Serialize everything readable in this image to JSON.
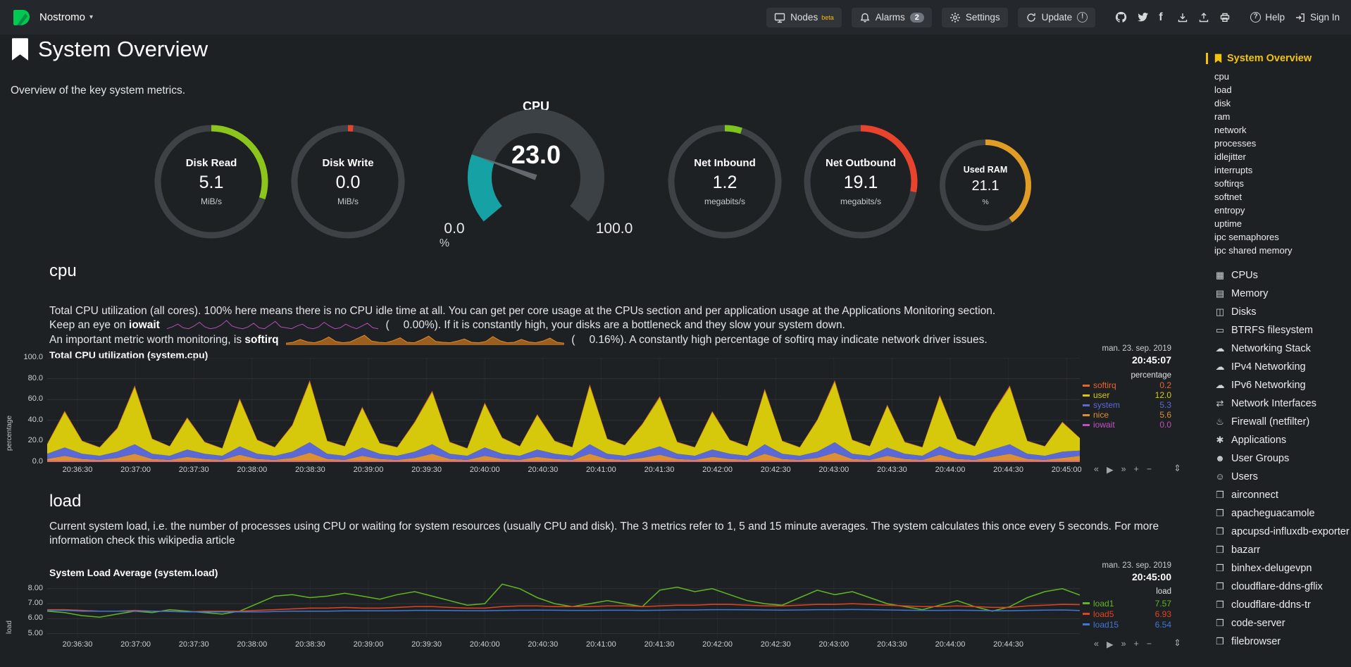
{
  "header": {
    "hostname": "Nostromo",
    "caret": "▾",
    "nodes_label": "Nodes",
    "nodes_beta": "beta",
    "alarms_label": "Alarms",
    "alarms_count": "2",
    "settings_label": "Settings",
    "update_label": "Update",
    "update_badge": "!",
    "facebook_glyph": "f",
    "help_label": "Help",
    "help_glyph": "?",
    "signin_label": "Sign In"
  },
  "page": {
    "title": "System Overview",
    "subtitle": "Overview of the key system metrics."
  },
  "gauges": [
    {
      "title": "Disk Read",
      "value": "5.1",
      "units": "MiB/s",
      "color": "#8CC51B",
      "arc_pct": 0.3,
      "size": 164
    },
    {
      "title": "Disk Write",
      "value": "0.0",
      "units": "MiB/s",
      "color": "#E8432C",
      "arc_pct": 0.015,
      "size": 164
    },
    {
      "title": "Net Inbound",
      "value": "1.2",
      "units": "megabits/s",
      "color": "#7DC41E",
      "arc_pct": 0.05,
      "size": 164
    },
    {
      "title": "Net Outbound",
      "value": "19.1",
      "units": "megabits/s",
      "color": "#E8432C",
      "arc_pct": 0.28,
      "size": 164
    },
    {
      "title": "Used RAM",
      "value": "21.1",
      "units": "%",
      "color": "#E09C25",
      "arc_pct": 0.4,
      "size": 134
    }
  ],
  "cpu_gauge": {
    "title": "CPU",
    "value": "23.0",
    "min": "0.0",
    "max": "100.0",
    "units": "%",
    "fill_color": "#16A1A5",
    "track_color": "#3C4146",
    "needle_color": "#62686E"
  },
  "sections": {
    "cpu": {
      "heading": "cpu",
      "desc1": "Total CPU utilization (all cores). 100% here means there is no CPU idle time at all. You can get per core usage at the CPUs section and per application usage at the Applications Monitoring section.",
      "line2_pre": "Keep an eye on ",
      "line2_bold": "iowait",
      "line2_open": "(",
      "line2_value": "0.00%",
      "line2_post": "). If it is constantly high, your disks are a bottleneck and they slow your system down.",
      "line3_pre": "An important metric worth monitoring, is ",
      "line3_bold": "softirq",
      "line3_open": "(",
      "line3_value": "0.16%",
      "line3_post": "). A constantly high percentage of softirq may indicate network driver issues."
    },
    "load": {
      "heading": "load",
      "desc": "Current system load, i.e. the number of processes using CPU or waiting for system resources (usually CPU and disk). The 3 metrics refer to 1, 5 and 15 minute averages. The system calculates this once every 5 seconds. For more information check this wikipedia article"
    }
  },
  "sparklines": {
    "iowait": {
      "color": "#B350B3",
      "values": [
        0.1,
        0.3,
        0.6,
        0.2,
        0.1,
        0.4,
        0.8,
        0.3,
        0.1,
        0.2,
        0.5,
        1.0,
        0.4,
        0.2,
        0.1,
        0.3,
        0.7,
        0.2,
        0.1,
        0.5,
        0.9,
        0.3,
        0.2,
        0.1,
        0.4,
        0.6,
        0.2,
        0.1,
        0.3,
        0.8,
        0.4,
        0.1,
        0.2,
        0.6,
        0.3,
        0.1,
        0.4,
        0.7,
        0.2,
        0.1
      ]
    },
    "softirq": {
      "color": "#B06A1E",
      "line": "#E08A28",
      "values": [
        0.3,
        0.5,
        1.2,
        0.6,
        0.4,
        0.9,
        1.8,
        0.7,
        0.4,
        0.6,
        1.4,
        2.2,
        0.8,
        0.5,
        0.4,
        0.9,
        1.6,
        0.5,
        0.4,
        1.1,
        2.0,
        0.7,
        0.5,
        0.4,
        0.8,
        1.3,
        0.5,
        0.4,
        0.7,
        1.9,
        0.9,
        0.4,
        0.5,
        1.2,
        0.6,
        0.4,
        0.8,
        1.5,
        0.5,
        0.3
      ]
    }
  },
  "chart_toolbar": {
    "rewind": "«",
    "play": "▶",
    "forward": "»",
    "zoom_in": "+",
    "zoom_out": "−",
    "resize": "⇕"
  },
  "chart_data": [
    {
      "id": "system.cpu",
      "type": "area",
      "stacked": true,
      "title": "Total CPU utilization (system.cpu)",
      "units": "percentage",
      "ylabel": "percentage",
      "date": "man. 23. sep. 2019",
      "time": "20:45:07",
      "ylim": [
        0,
        100
      ],
      "yticks": [
        0,
        20,
        40,
        60,
        80,
        100
      ],
      "ytick_labels": [
        "0.0",
        "20.0",
        "40.0",
        "60.0",
        "80.0",
        "100.0"
      ],
      "xticks": [
        "20:36:30",
        "20:37:00",
        "20:37:30",
        "20:38:00",
        "20:38:30",
        "20:39:00",
        "20:39:30",
        "20:40:00",
        "20:40:30",
        "20:41:00",
        "20:41:30",
        "20:42:00",
        "20:42:30",
        "20:43:00",
        "20:43:30",
        "20:44:00",
        "20:44:30",
        "20:45:00"
      ],
      "stack_order": [
        "nice",
        "system",
        "user",
        "softirq"
      ],
      "overlay": "iowait",
      "series": [
        {
          "name": "softirq",
          "color": "#E8642B",
          "value_label": "0.2",
          "values": [
            0.5,
            1.2,
            0.4,
            0.3,
            0.8,
            1.5,
            0.5,
            0.3,
            0.9,
            0.4,
            0.3,
            1.1,
            0.5,
            0.3,
            0.7,
            1.6,
            0.4,
            0.3,
            1.0,
            0.4,
            0.3,
            0.8,
            1.4,
            0.4,
            0.3,
            1.0,
            0.5,
            0.3,
            0.9,
            0.4,
            0.3,
            1.5,
            0.5,
            0.3,
            0.7,
            1.2,
            0.4,
            0.3,
            0.9,
            0.4,
            0.3,
            1.3,
            0.5,
            0.3,
            0.8,
            1.6,
            0.4,
            0.3,
            1.0,
            0.4,
            0.3,
            1.2,
            0.5,
            0.3,
            0.9,
            1.4,
            0.4,
            0.3,
            0.7,
            0.2
          ]
        },
        {
          "name": "user",
          "color": "#D6C90B",
          "value_label": "12.0",
          "values": [
            9,
            34,
            12,
            8,
            22,
            55,
            14,
            9,
            30,
            11,
            7,
            45,
            13,
            8,
            25,
            58,
            12,
            9,
            38,
            10,
            8,
            28,
            50,
            11,
            7,
            42,
            15,
            9,
            33,
            12,
            8,
            56,
            14,
            10,
            26,
            47,
            11,
            8,
            36,
            13,
            9,
            52,
            12,
            8,
            30,
            58,
            13,
            9,
            40,
            11,
            8,
            48,
            14,
            9,
            34,
            55,
            12,
            9,
            28,
            12
          ]
        },
        {
          "name": "system",
          "color": "#5B69D6",
          "value_label": "5.3",
          "values": [
            5,
            8,
            5,
            4,
            6,
            9,
            5,
            4,
            7,
            5,
            4,
            8,
            5,
            4,
            6,
            10,
            5,
            4,
            8,
            5,
            4,
            6,
            9,
            5,
            4,
            8,
            5,
            4,
            7,
            5,
            4,
            9,
            5,
            4,
            6,
            8,
            5,
            4,
            7,
            5,
            4,
            9,
            5,
            4,
            6,
            10,
            5,
            4,
            8,
            5,
            4,
            8,
            5,
            4,
            7,
            9,
            5,
            4,
            6,
            5
          ]
        },
        {
          "name": "nice",
          "color": "#DD8F34",
          "value_label": "5.6",
          "values": [
            3,
            6,
            3,
            2,
            4,
            8,
            3,
            2,
            5,
            3,
            2,
            7,
            3,
            2,
            4,
            9,
            3,
            2,
            6,
            3,
            2,
            4,
            8,
            3,
            2,
            6,
            3,
            2,
            5,
            3,
            2,
            8,
            3,
            2,
            4,
            7,
            3,
            2,
            5,
            3,
            2,
            8,
            3,
            2,
            4,
            9,
            3,
            2,
            6,
            3,
            2,
            7,
            3,
            2,
            5,
            8,
            3,
            2,
            4,
            6
          ]
        },
        {
          "name": "iowait",
          "color": "#C44EC4",
          "value_label": "0.0",
          "values": [
            0,
            0.2,
            0,
            0,
            0.1,
            0.3,
            0,
            0,
            0.2,
            0,
            0,
            0.3,
            0,
            0,
            0.1,
            0.4,
            0,
            0,
            0.2,
            0,
            0,
            0.1,
            0.3,
            0,
            0,
            0.2,
            0,
            0,
            0.1,
            0,
            0,
            0.3,
            0,
            0,
            0.1,
            0.2,
            0,
            0,
            0.2,
            0,
            0,
            0.3,
            0,
            0,
            0.1,
            0.4,
            0,
            0,
            0.2,
            0,
            0,
            0.2,
            0,
            0,
            0.1,
            0.3,
            0,
            0,
            0.1,
            0
          ]
        }
      ]
    },
    {
      "id": "system.load",
      "type": "line",
      "stacked": false,
      "title": "System Load Average (system.load)",
      "units": "load",
      "ylabel": "load",
      "date": "man. 23. sep. 2019",
      "time": "20:45:00",
      "ylim": [
        4.7,
        8.6
      ],
      "yticks": [
        5,
        6,
        7,
        8
      ],
      "ytick_labels": [
        "5.00",
        "6.00",
        "7.00",
        "8.00"
      ],
      "xticks": [
        "20:36:30",
        "20:37:00",
        "20:37:30",
        "20:38:00",
        "20:38:30",
        "20:39:00",
        "20:39:30",
        "20:40:00",
        "20:40:30",
        "20:41:00",
        "20:41:30",
        "20:42:00",
        "20:42:30",
        "20:43:00",
        "20:43:30",
        "20:44:00",
        "20:44:30"
      ],
      "series": [
        {
          "name": "load1",
          "color": "#60B622",
          "value_label": "7.57",
          "values": [
            6.5,
            6.4,
            6.2,
            6.1,
            6.3,
            6.5,
            6.4,
            6.6,
            6.5,
            6.4,
            6.3,
            6.5,
            7.0,
            7.5,
            7.6,
            7.4,
            7.5,
            7.7,
            7.5,
            7.3,
            7.6,
            7.8,
            7.5,
            7.2,
            6.9,
            7.0,
            8.3,
            8.0,
            7.4,
            7.0,
            6.8,
            7.0,
            7.2,
            7.0,
            6.8,
            7.9,
            8.1,
            7.8,
            8.0,
            7.6,
            7.2,
            7.0,
            6.9,
            7.4,
            7.9,
            7.6,
            7.8,
            7.4,
            7.0,
            6.8,
            6.6,
            6.9,
            7.2,
            6.8,
            6.5,
            6.8,
            7.4,
            7.8,
            8.0,
            7.57
          ]
        },
        {
          "name": "load5",
          "color": "#E2431E",
          "value_label": "6.93",
          "values": [
            6.6,
            6.6,
            6.55,
            6.5,
            6.5,
            6.55,
            6.5,
            6.5,
            6.45,
            6.5,
            6.5,
            6.5,
            6.55,
            6.6,
            6.65,
            6.7,
            6.7,
            6.75,
            6.7,
            6.7,
            6.75,
            6.8,
            6.8,
            6.75,
            6.7,
            6.7,
            6.8,
            6.85,
            6.85,
            6.8,
            6.8,
            6.8,
            6.85,
            6.85,
            6.8,
            6.85,
            6.9,
            6.9,
            6.95,
            6.95,
            6.9,
            6.85,
            6.85,
            6.9,
            6.95,
            6.95,
            7.0,
            6.95,
            6.9,
            6.85,
            6.8,
            6.8,
            6.85,
            6.8,
            6.75,
            6.75,
            6.85,
            6.9,
            6.95,
            6.93
          ]
        },
        {
          "name": "load15",
          "color": "#4076D4",
          "value_label": "6.54",
          "values": [
            6.55,
            6.55,
            6.5,
            6.5,
            6.5,
            6.5,
            6.5,
            6.48,
            6.45,
            6.45,
            6.45,
            6.45,
            6.45,
            6.47,
            6.5,
            6.5,
            6.5,
            6.52,
            6.52,
            6.52,
            6.53,
            6.55,
            6.55,
            6.54,
            6.53,
            6.53,
            6.55,
            6.56,
            6.57,
            6.56,
            6.55,
            6.55,
            6.56,
            6.56,
            6.55,
            6.56,
            6.58,
            6.58,
            6.6,
            6.6,
            6.59,
            6.58,
            6.57,
            6.58,
            6.6,
            6.6,
            6.61,
            6.6,
            6.58,
            6.56,
            6.55,
            6.55,
            6.56,
            6.55,
            6.53,
            6.53,
            6.55,
            6.57,
            6.58,
            6.54
          ]
        }
      ]
    }
  ],
  "sidebar": {
    "active": {
      "label": "System Overview"
    },
    "subitems": [
      "cpu",
      "load",
      "disk",
      "ram",
      "network",
      "processes",
      "idlejitter",
      "interrupts",
      "softirqs",
      "softnet",
      "entropy",
      "uptime",
      "ipc semaphores",
      "ipc shared memory"
    ],
    "items": [
      {
        "label": "CPUs",
        "icon": "▦",
        "icon_name": "microchip-icon"
      },
      {
        "label": "Memory",
        "icon": "▤",
        "icon_name": "memory-icon"
      },
      {
        "label": "Disks",
        "icon": "◫",
        "icon_name": "hdd-icon"
      },
      {
        "label": "BTRFS filesystem",
        "icon": "▭",
        "icon_name": "folder-icon"
      },
      {
        "label": "Networking Stack",
        "icon": "☁",
        "icon_name": "cloud-icon"
      },
      {
        "label": "IPv4 Networking",
        "icon": "☁",
        "icon_name": "cloud-icon"
      },
      {
        "label": "IPv6 Networking",
        "icon": "☁",
        "icon_name": "cloud-icon"
      },
      {
        "label": "Network Interfaces",
        "icon": "⇄",
        "icon_name": "ethernet-icon"
      },
      {
        "label": "Firewall (netfilter)",
        "icon": "♨",
        "icon_name": "fire-icon"
      },
      {
        "label": "Applications",
        "icon": "✱",
        "icon_name": "gears-icon"
      },
      {
        "label": "User Groups",
        "icon": "☻",
        "icon_name": "users-icon"
      },
      {
        "label": "Users",
        "icon": "☺",
        "icon_name": "user-icon"
      },
      {
        "label": "airconnect",
        "icon": "❒",
        "icon_name": "cube-icon"
      },
      {
        "label": "apacheguacamole",
        "icon": "❒",
        "icon_name": "cube-icon"
      },
      {
        "label": "apcupsd-influxdb-exporter",
        "icon": "❒",
        "icon_name": "cube-icon"
      },
      {
        "label": "bazarr",
        "icon": "❒",
        "icon_name": "cube-icon"
      },
      {
        "label": "binhex-delugevpn",
        "icon": "❒",
        "icon_name": "cube-icon"
      },
      {
        "label": "cloudflare-ddns-gflix",
        "icon": "❒",
        "icon_name": "cube-icon"
      },
      {
        "label": "cloudflare-ddns-tr",
        "icon": "❒",
        "icon_name": "cube-icon"
      },
      {
        "label": "code-server",
        "icon": "❒",
        "icon_name": "cube-icon"
      },
      {
        "label": "filebrowser",
        "icon": "❒",
        "icon_name": "cube-icon"
      }
    ]
  }
}
